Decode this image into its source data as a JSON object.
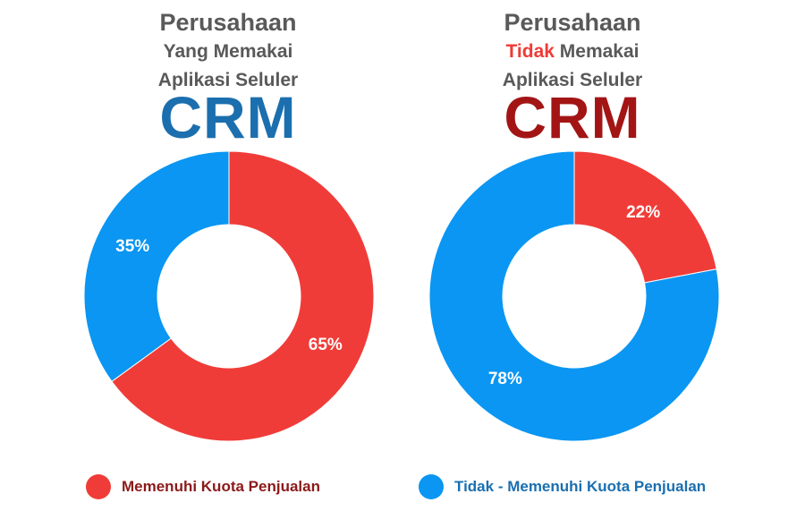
{
  "colors": {
    "red": "#f03c38",
    "blue": "#0a96f2",
    "crm_blue": "#1b6fae",
    "crm_red": "#a31515"
  },
  "left": {
    "title_line1": "Perusahaan",
    "title_line2": "Yang Memakai",
    "title_line3": "Aplikasi Seluler",
    "crm": "CRM"
  },
  "right": {
    "title_line1": "Perusahaan",
    "title_line2_highlight": "Tidak",
    "title_line2_rest": " Memakai",
    "title_line3": "Aplikasi Seluler",
    "crm": "CRM"
  },
  "legend": {
    "item_a": "Memenuhi Kuota Penjualan",
    "item_b": "Tidak - Memenuhi Kuota Penjualan"
  },
  "chart_data": [
    {
      "type": "pie",
      "title": "Perusahaan Yang Memakai Aplikasi Seluler CRM",
      "series": [
        {
          "name": "Memenuhi Kuota Penjualan",
          "value": 65,
          "label": "65%",
          "color": "#f03c38"
        },
        {
          "name": "Tidak - Memenuhi Kuota Penjualan",
          "value": 35,
          "label": "35%",
          "color": "#0a96f2"
        }
      ]
    },
    {
      "type": "pie",
      "title": "Perusahaan Tidak Memakai Aplikasi Seluler CRM",
      "series": [
        {
          "name": "Memenuhi Kuota Penjualan",
          "value": 22,
          "label": "22%",
          "color": "#f03c38"
        },
        {
          "name": "Tidak - Memenuhi Kuota Penjualan",
          "value": 78,
          "label": "78%",
          "color": "#0a96f2"
        }
      ]
    }
  ]
}
